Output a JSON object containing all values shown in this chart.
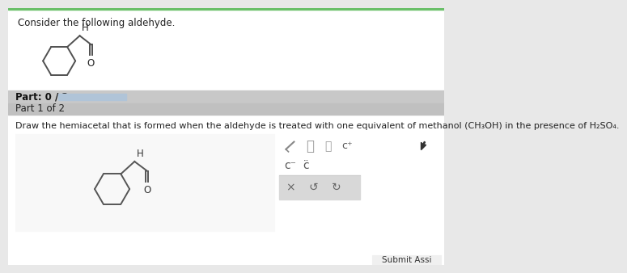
{
  "bg_color": "#e8e8e8",
  "white": "#ffffff",
  "text_color": "#222222",
  "title_text": "Consider the following aldehyde.",
  "part_label": "Part: 0 / 2",
  "part1_label": "Part 1 of 2",
  "instruction": "Draw the hemiacetal that is formed when the aldehyde is treated with one equivalent of methanol (CH₃OH) in the presence of H₂SO₄.",
  "submit_text": "Submit Assi",
  "progress_color": "#b0c4d8",
  "green_top": "#6abf69",
  "part_bar_color": "#c8c8c8",
  "part1_bar_color": "#c0c0c0",
  "palette_border": "#4db6ac",
  "btn_row_color": "#d8d8d8"
}
